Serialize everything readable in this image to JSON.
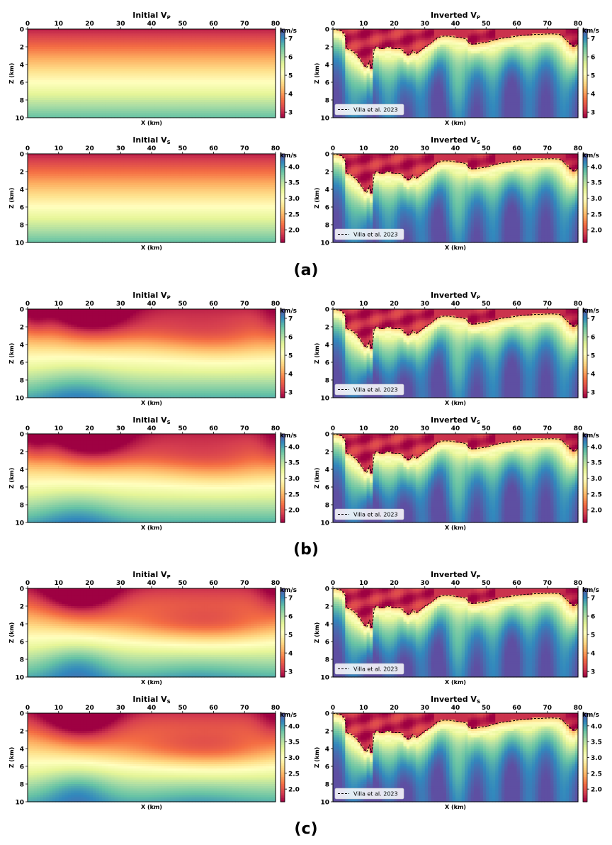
{
  "chart_data": [
    {
      "type": "heatmap",
      "group": "(a)",
      "subplots": [
        {
          "title": "Initial V",
          "subscript": "P",
          "kind": "initial-vp"
        },
        {
          "title": "Inverted V",
          "subscript": "P",
          "kind": "inverted-vp",
          "legend": "Villa et al. 2023"
        },
        {
          "title": "Initial V",
          "subscript": "S",
          "kind": "initial-vs"
        },
        {
          "title": "Inverted V",
          "subscript": "S",
          "kind": "inverted-vs",
          "legend": "Villa et al. 2023"
        }
      ]
    },
    {
      "type": "heatmap",
      "group": "(b)",
      "subplots": [
        {
          "title": "Initial V",
          "subscript": "P",
          "kind": "initial-vp"
        },
        {
          "title": "Inverted V",
          "subscript": "P",
          "kind": "inverted-vp",
          "legend": "Villa et al. 2023"
        },
        {
          "title": "Initial V",
          "subscript": "S",
          "kind": "initial-vs"
        },
        {
          "title": "Inverted V",
          "subscript": "S",
          "kind": "inverted-vs",
          "legend": "Villa et al. 2023"
        }
      ]
    },
    {
      "type": "heatmap",
      "group": "(c)",
      "subplots": [
        {
          "title": "Initial V",
          "subscript": "P",
          "kind": "initial-vp"
        },
        {
          "title": "Inverted V",
          "subscript": "P",
          "kind": "inverted-vp",
          "legend": "Villa et al. 2023"
        },
        {
          "title": "Initial V",
          "subscript": "S",
          "kind": "initial-vs"
        },
        {
          "title": "Inverted V",
          "subscript": "S",
          "kind": "inverted-vs",
          "legend": "Villa et al. 2023"
        }
      ]
    }
  ],
  "axes": {
    "xlabel": "X (km)",
    "ylabel": "Z (km)",
    "xlim": [
      0,
      80
    ],
    "ylim": [
      10,
      0
    ],
    "xticks": [
      0,
      10,
      20,
      30,
      40,
      50,
      60,
      70,
      80
    ],
    "yticks": [
      0,
      2,
      4,
      6,
      8,
      10
    ]
  },
  "colorbars": {
    "unit": "km/s",
    "vp": {
      "range": [
        2.7,
        7.5
      ],
      "ticks": [
        3,
        4,
        5,
        6,
        7
      ],
      "labels": [
        "3",
        "4",
        "5",
        "6",
        "7"
      ]
    },
    "vs": {
      "range": [
        1.6,
        4.4
      ],
      "ticks": [
        2.0,
        2.5,
        3.0,
        3.5,
        4.0
      ],
      "labels": [
        "2.0",
        "2.5",
        "3.0",
        "3.5",
        "4.0"
      ]
    }
  },
  "colormap": [
    "#9e0142",
    "#d53e4f",
    "#f46d43",
    "#fdae61",
    "#fee08b",
    "#ffffbf",
    "#e6f598",
    "#abdda4",
    "#66c2a5",
    "#3288bd",
    "#5e4fa2"
  ],
  "moho_line": {
    "label": "Villa et al. 2023",
    "x": [
      0,
      3,
      4,
      4.5,
      6,
      8,
      10,
      11,
      12,
      12.5,
      13,
      13.5,
      14,
      16,
      18,
      20,
      22,
      24,
      25,
      26,
      27,
      28,
      30,
      32,
      34,
      36,
      38,
      40,
      42,
      43.5,
      44,
      45,
      46,
      48,
      50,
      52,
      54,
      56,
      58,
      60,
      62,
      64,
      66,
      68,
      70,
      72,
      74,
      75,
      76,
      77,
      78,
      79,
      80
    ],
    "z": [
      0,
      0.2,
      0.8,
      2.2,
      2.4,
      3.0,
      4.0,
      4.4,
      3.6,
      4.4,
      3.8,
      2.2,
      2.0,
      2.2,
      2.0,
      2.2,
      2.2,
      2.8,
      3.0,
      2.4,
      2.8,
      2.6,
      2.0,
      1.6,
      1.0,
      0.8,
      0.8,
      0.9,
      1.0,
      1.1,
      1.5,
      1.7,
      1.7,
      1.6,
      1.5,
      1.3,
      1.1,
      1.0,
      0.9,
      0.8,
      0.7,
      0.65,
      0.6,
      0.6,
      0.55,
      0.55,
      0.6,
      0.8,
      1.2,
      1.5,
      1.8,
      2.0,
      1.6
    ]
  }
}
